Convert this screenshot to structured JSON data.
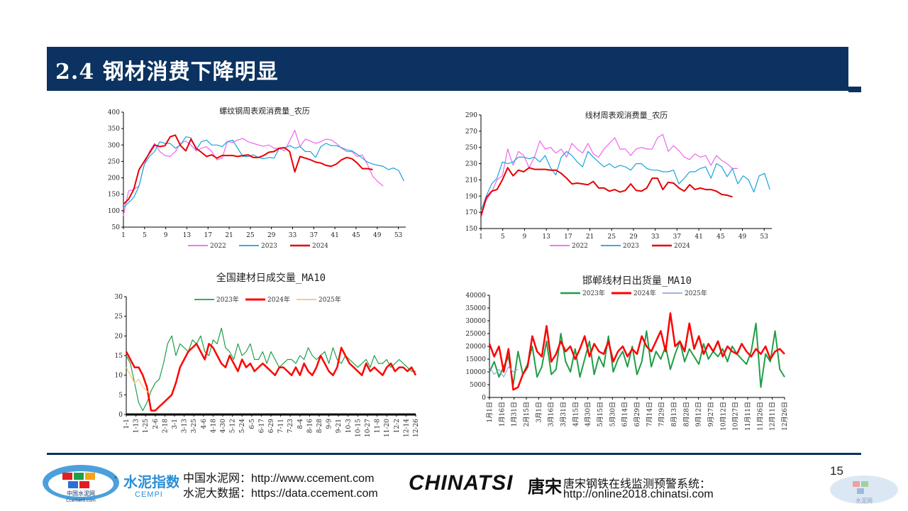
{
  "page": {
    "title": "2.4 钢材消费下降明显",
    "page_number": "15"
  },
  "footer": {
    "cement_logo_text": "中国水泥网",
    "cement_logo_sub": "Ccement.com",
    "cempi_logo": "水泥指数",
    "cempi_sub": "CEMPI",
    "line1": "中国水泥网：http://www.ccement.com",
    "line2": "水泥大数据：https://data.ccement.com",
    "chinatsi": "CHINATSI",
    "chinatsi_cn": "唐宋",
    "tangsong_line1": "唐宋钢铁在线监测预警系统：",
    "tangsong_line2": "http://online2018.chinatsi.com",
    "corner_logo_text": "水泥网"
  },
  "chart_data": [
    {
      "type": "line",
      "title": "螺纹钢周表观消费量_农历",
      "ylim": [
        50,
        400
      ],
      "yticks": [
        "50",
        "100",
        "150",
        "200",
        "250",
        "300",
        "350",
        "400"
      ],
      "xticks": [
        "1",
        "5",
        "9",
        "13",
        "17",
        "21",
        "25",
        "29",
        "33",
        "37",
        "41",
        "45",
        "49",
        "53"
      ],
      "colors": {
        "2022": "#ee66ee",
        "2023": "#1aa3d9",
        "2024": "#e60000"
      },
      "series": [
        {
          "name": "2022",
          "values": [
            85,
            160,
            165,
            175,
            240,
            280,
            305,
            280,
            268,
            265,
            280,
            305,
            312,
            300,
            282,
            290,
            295,
            280,
            255,
            260,
            310,
            308,
            315,
            320,
            310,
            305,
            300,
            296,
            300,
            290,
            290,
            282,
            312,
            345,
            295,
            318,
            312,
            305,
            310,
            318,
            315,
            305,
            290,
            280,
            280,
            265,
            270,
            240,
            205,
            188,
            175
          ]
        },
        {
          "name": "2023",
          "values": [
            110,
            125,
            140,
            175,
            240,
            265,
            280,
            310,
            305,
            305,
            290,
            300,
            325,
            322,
            285,
            310,
            315,
            300,
            300,
            295,
            310,
            315,
            290,
            265,
            265,
            270,
            262,
            258,
            262,
            260,
            290,
            290,
            298,
            290,
            295,
            280,
            280,
            262,
            295,
            305,
            298,
            298,
            292,
            285,
            282,
            272,
            260,
            248,
            242,
            238,
            235,
            225,
            230,
            222,
            190
          ]
        },
        {
          "name": "2024",
          "values": [
            120,
            135,
            165,
            225,
            250,
            275,
            300,
            295,
            298,
            325,
            330,
            298,
            282,
            318,
            290,
            278,
            265,
            270,
            260,
            268,
            268,
            268,
            265,
            268,
            270,
            262,
            262,
            268,
            278,
            280,
            290,
            292,
            280,
            218,
            265,
            260,
            255,
            248,
            245,
            238,
            235,
            242,
            255,
            262,
            258,
            245,
            228,
            228,
            225
          ]
        }
      ]
    },
    {
      "type": "line",
      "title": "线材周表观消费量_农历",
      "ylim": [
        150,
        290
      ],
      "yticks": [
        "150",
        "170",
        "190",
        "210",
        "230",
        "250",
        "270",
        "290"
      ],
      "xticks": [
        "1",
        "5",
        "9",
        "13",
        "17",
        "21",
        "25",
        "29",
        "33",
        "37",
        "41",
        "45",
        "49",
        "53"
      ],
      "colors": {
        "2022": "#ee66ee",
        "2023": "#1aa3d9",
        "2024": "#e60000"
      },
      "series": [
        {
          "name": "2022",
          "values": [
            165,
            185,
            195,
            210,
            215,
            248,
            228,
            245,
            240,
            225,
            238,
            258,
            248,
            250,
            243,
            248,
            238,
            255,
            248,
            243,
            255,
            242,
            238,
            248,
            255,
            262,
            248,
            248,
            240,
            248,
            250,
            248,
            248,
            262,
            266,
            245,
            252,
            246,
            238,
            235,
            242,
            238,
            240,
            228,
            240,
            234,
            230,
            224,
            224
          ]
        },
        {
          "name": "2023",
          "values": [
            172,
            190,
            205,
            212,
            232,
            230,
            232,
            238,
            238,
            236,
            238,
            232,
            240,
            225,
            216,
            238,
            245,
            240,
            232,
            226,
            245,
            238,
            232,
            226,
            230,
            225,
            228,
            226,
            222,
            230,
            230,
            224,
            222,
            222,
            220,
            220,
            222,
            205,
            212,
            220,
            220,
            224,
            226,
            212,
            230,
            226,
            214,
            224,
            205,
            215,
            210,
            195,
            215,
            218,
            198
          ]
        },
        {
          "name": "2024",
          "values": [
            165,
            188,
            196,
            198,
            210,
            225,
            215,
            222,
            220,
            225,
            223,
            223,
            223,
            222,
            222,
            218,
            212,
            205,
            206,
            205,
            204,
            208,
            200,
            200,
            196,
            198,
            195,
            197,
            205,
            197,
            196,
            200,
            212,
            212,
            198,
            207,
            206,
            200,
            196,
            204,
            198,
            200,
            198,
            198,
            196,
            192,
            191,
            189
          ]
        }
      ]
    },
    {
      "type": "line",
      "title": "全国建材日成交量_MA10",
      "ylim": [
        0,
        30
      ],
      "yticks": [
        "0",
        "5",
        "10",
        "15",
        "20",
        "25",
        "30"
      ],
      "xticks": [
        "1-1",
        "1-13",
        "1-25",
        "2-6",
        "2-18",
        "3-1",
        "3-13",
        "3-25",
        "4-6",
        "4-18",
        "4-30",
        "5-12",
        "5-24",
        "6-5",
        "6-17",
        "6-29",
        "7-11",
        "7-23",
        "8-4",
        "8-16",
        "8-28",
        "9-9",
        "9-21",
        "10-3",
        "10-15",
        "10-27",
        "11-8",
        "11-20",
        "12-2",
        "12-14",
        "12-26"
      ],
      "colors": {
        "2023年": "#1f9e48",
        "2024年": "#ff0000",
        "2025年": "#f3c57a"
      },
      "series": [
        {
          "name": "2023年",
          "values": [
            15,
            13,
            8,
            3,
            1,
            3,
            6,
            8,
            9,
            13,
            18,
            20,
            15,
            18,
            17,
            16,
            19,
            18,
            20,
            16,
            15,
            19,
            18,
            22,
            17,
            16,
            14,
            18,
            15,
            16,
            18,
            14,
            14,
            16,
            13,
            16,
            14,
            12,
            13,
            14,
            14,
            13,
            15,
            14,
            17,
            15,
            14,
            15,
            16,
            13,
            17,
            14,
            13,
            15,
            14,
            13,
            12,
            13,
            14,
            12,
            15,
            13,
            13,
            14,
            12,
            13,
            14,
            13,
            12,
            11,
            11
          ]
        },
        {
          "name": "2024年",
          "values": [
            16,
            14,
            12,
            12,
            10,
            7,
            1,
            1,
            2,
            3,
            4,
            5,
            8,
            12,
            14,
            16,
            17,
            18,
            16,
            14,
            18,
            17,
            15,
            13,
            12,
            15,
            13,
            11,
            14,
            12,
            13,
            11,
            12,
            13,
            12,
            11,
            10,
            12,
            12,
            11,
            10,
            12,
            10,
            13,
            11,
            10,
            12,
            15,
            13,
            11,
            10,
            12,
            17,
            15,
            13,
            12,
            11,
            10,
            13,
            11,
            12,
            11,
            10,
            12,
            13,
            11,
            12,
            12,
            11,
            12,
            10
          ]
        },
        {
          "name": "2025年",
          "values": [
            12,
            10,
            8,
            9,
            7,
            6,
            5
          ]
        }
      ]
    },
    {
      "type": "line",
      "title": "邯郸线材日出货量_MA10",
      "ylim": [
        0,
        40000
      ],
      "yticks": [
        "0",
        "5000",
        "10000",
        "15000",
        "20000",
        "25000",
        "30000",
        "35000",
        "40000"
      ],
      "xticks": [
        "1月1日",
        "1月16日",
        "1月31日",
        "2月15日",
        "3月1日",
        "3月16日",
        "3月31日",
        "4月15日",
        "4月30日",
        "5月15日",
        "5月30日",
        "6月14日",
        "6月29日",
        "7月14日",
        "7月29日",
        "8月13日",
        "8月28日",
        "9月12日",
        "9月27日",
        "10月12日",
        "10月27日",
        "11月11日",
        "11月26日",
        "12月11日",
        "12月26日"
      ],
      "colors": {
        "2023年": "#1f9e48",
        "2024年": "#ff0000",
        "2025年": "#8faadc"
      },
      "series": [
        {
          "name": "2023年",
          "values": [
            10000,
            14000,
            8000,
            12000,
            16000,
            5000,
            18000,
            9000,
            13000,
            20000,
            8000,
            12000,
            22000,
            9000,
            11000,
            25000,
            14000,
            10000,
            19000,
            8000,
            15000,
            22000,
            9000,
            16000,
            12000,
            24000,
            10000,
            15000,
            18000,
            12000,
            20000,
            9000,
            14000,
            26000,
            12000,
            18000,
            15000,
            20000,
            11000,
            17000,
            22000,
            14000,
            19000,
            16000,
            13000,
            21000,
            15000,
            18000,
            16000,
            19000,
            14000,
            20000,
            17000,
            15000,
            13000,
            18000,
            29000,
            4000,
            17000,
            14000,
            26000,
            11000,
            8000
          ]
        },
        {
          "name": "2024年",
          "values": [
            21000,
            16000,
            20000,
            10000,
            19000,
            3000,
            4000,
            9000,
            12000,
            24000,
            18000,
            16000,
            28000,
            14000,
            17000,
            22000,
            18000,
            20000,
            15000,
            19000,
            24000,
            16000,
            21000,
            18000,
            17000,
            22000,
            14000,
            18000,
            20000,
            16000,
            19000,
            17000,
            24000,
            20000,
            18000,
            22000,
            26000,
            18000,
            33000,
            20000,
            22000,
            18000,
            29000,
            19000,
            24000,
            17000,
            21000,
            18000,
            22000,
            16000,
            20000,
            18000,
            17000,
            21000,
            18000,
            16000,
            19000,
            17000,
            20000,
            15000,
            18000,
            19000,
            17000
          ]
        },
        {
          "name": "2025年",
          "values": [
            12000,
            9000,
            11000,
            8000,
            12000,
            10000,
            11000
          ]
        }
      ]
    }
  ]
}
